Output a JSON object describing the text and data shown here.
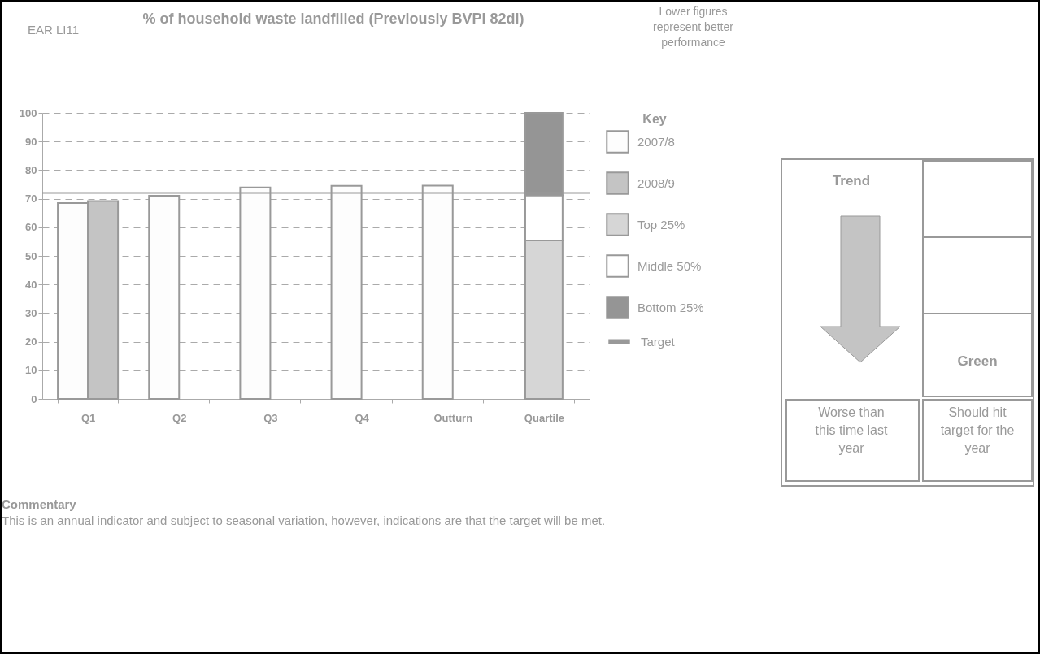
{
  "chart_data": {
    "type": "bar",
    "title": "% of household waste landfilled (Previously BVPI 82di)",
    "categories": [
      "Q1",
      "Q2",
      "Q3",
      "Q4",
      "Outturn",
      "Quartile"
    ],
    "series": [
      {
        "name": "2007/8",
        "color": "#fdfdfd",
        "values": [
          68.5,
          71.0,
          73.9,
          74.5,
          74.6,
          null
        ]
      },
      {
        "name": "2008/9",
        "color": "#c4c4c4",
        "values": [
          69.2,
          null,
          null,
          null,
          null,
          null
        ]
      },
      {
        "name": "Top 25%",
        "color": "#d6d6d6",
        "values": [
          null,
          null,
          null,
          null,
          null,
          55.4
        ],
        "base": [
          null,
          null,
          null,
          null,
          null,
          0
        ]
      },
      {
        "name": "Middle 50%",
        "color": "#ffffff",
        "values": [
          null,
          null,
          null,
          null,
          null,
          15.8
        ],
        "base": [
          null,
          null,
          null,
          null,
          null,
          55.4
        ]
      },
      {
        "name": "Bottom 25%",
        "color": "#959595",
        "values": [
          null,
          null,
          null,
          null,
          null,
          28.8
        ],
        "base": [
          null,
          null,
          null,
          null,
          null,
          71.2
        ]
      }
    ],
    "ylim": [
      0,
      100
    ],
    "yticks": [
      0,
      10,
      20,
      30,
      40,
      50,
      60,
      70,
      80,
      90,
      100
    ],
    "grid": "y",
    "ref_lines": [
      {
        "axis": "y",
        "value": 72,
        "label": "Target",
        "color": "#999999"
      }
    ],
    "legend": "right",
    "legend_title": "Key",
    "annotations": [
      "EAR LI11",
      "Lower figures represent better performance",
      "Trend",
      "Green",
      "Worse than this time last year",
      "Should hit target for the year",
      "Commentary",
      "This is an annual indicator and subject to seasonal variation, however, indications are that the target will be met."
    ]
  }
}
